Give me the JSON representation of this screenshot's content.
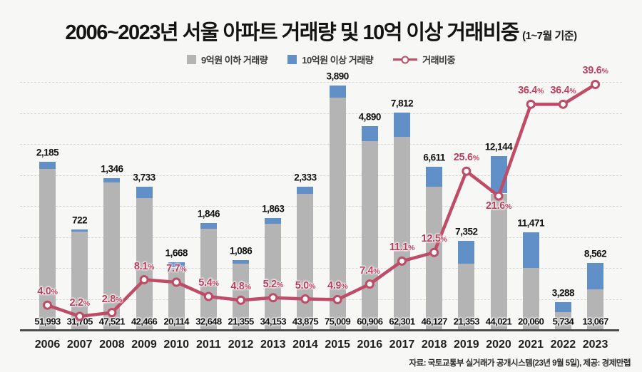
{
  "title": {
    "main": "2006~2023년 서울 아파트 거래량 및 10억 이상 거래비중",
    "suffix": "(1~7월 기준)"
  },
  "legend": {
    "items": [
      {
        "label": "9억원 이하 거래량",
        "swatch": "gray-square"
      },
      {
        "label": "10억원 이상 거래량",
        "swatch": "blue-square"
      },
      {
        "label": "거래비중",
        "swatch": "line-marker"
      }
    ]
  },
  "source": "자료: 국토교통부 실거래가 공개시스템(23년 9월 5일), 제공: 경제만랩",
  "colors": {
    "background": "#f7f7f5",
    "bar_under_900m": "#b4b4b4",
    "bar_over_1b": "#6190c8",
    "ratio_line": "#c04b66",
    "pct_label": "#c23a5a",
    "axis": "#4c4c4c",
    "grid": "#d7d7d5"
  },
  "chart_data": {
    "type": "bar",
    "combo": "stacked-bar + line",
    "categories": [
      "2006",
      "2007",
      "2008",
      "2009",
      "2010",
      "2011",
      "2012",
      "2013",
      "2014",
      "2015",
      "2016",
      "2017",
      "2018",
      "2019",
      "2020",
      "2021",
      "2022",
      "2023"
    ],
    "series": [
      {
        "name": "9억원 이하 거래량",
        "type": "bar",
        "stack": "volume",
        "color": "#b4b4b4",
        "values": [
          51993,
          31705,
          47521,
          42466,
          20114,
          32648,
          21355,
          34153,
          43875,
          75009,
          60906,
          62301,
          46127,
          21353,
          44021,
          20060,
          5734,
          13067
        ]
      },
      {
        "name": "10억원 이상 거래량",
        "type": "bar",
        "stack": "volume",
        "color": "#6190c8",
        "values": [
          2185,
          722,
          1346,
          3733,
          1668,
          1846,
          1086,
          1863,
          2333,
          3890,
          4890,
          7812,
          6611,
          7352,
          12144,
          11471,
          3288,
          8562
        ]
      },
      {
        "name": "거래비중",
        "type": "line",
        "color": "#c04b66",
        "unit": "%",
        "values": [
          4.0,
          2.2,
          2.8,
          8.1,
          7.7,
          5.4,
          4.8,
          5.2,
          5.0,
          4.9,
          7.4,
          11.1,
          12.5,
          25.6,
          21.6,
          36.4,
          36.4,
          39.6
        ]
      }
    ],
    "value_labels": {
      "above_bar": [
        "2,185",
        "722",
        "1,346",
        "3,733",
        "1,668",
        "1,846",
        "1,086",
        "1,863",
        "2,333",
        "3,890",
        "4,890",
        "7,812",
        "6,611",
        "7,352",
        "12,144",
        "11,471",
        "3,288",
        "8,562"
      ],
      "at_base": [
        "51,993",
        "31,705",
        "47,521",
        "42,466",
        "20,114",
        "32,648",
        "21,355",
        "34,153",
        "43,875",
        "75,009",
        "60,906",
        "62,301",
        "46,127",
        "21,353",
        "44,021",
        "20,060",
        "5,734",
        "13,067"
      ],
      "pct": [
        "4.0%",
        "2.2%",
        "2.8%",
        "8.1%",
        "7.7%",
        "5.4%",
        "4.8%",
        "5.2%",
        "5.0%",
        "4.9%",
        "7.4%",
        "11.1%",
        "12.5%",
        "25.6%",
        "21.6%",
        "36.4%",
        "36.4%",
        "39.6%"
      ]
    },
    "pct_label_position": [
      "above",
      "above",
      "above",
      "above",
      "above",
      "above",
      "above",
      "above",
      "above",
      "above",
      "above",
      "above",
      "above",
      "above",
      "below",
      "above",
      "above",
      "above"
    ],
    "y_axis": {
      "min": 0,
      "max": 80000,
      "grid_interval": 10000,
      "tick_labels_visible": false
    },
    "y2_axis": {
      "min": 0,
      "max": 40,
      "tick_labels_visible": false
    },
    "grid": "horizontal-dashed",
    "legend_position": "top-center"
  }
}
